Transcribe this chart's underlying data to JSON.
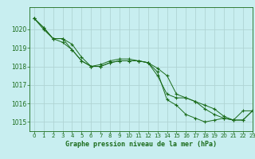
{
  "title": "Graphe pression niveau de la mer (hPa)",
  "background_color": "#c8eef0",
  "grid_color": "#b0d4d4",
  "line_color": "#1a6b1a",
  "x_min": -0.5,
  "x_max": 23,
  "y_min": 1014.5,
  "y_max": 1021.2,
  "yticks": [
    1015,
    1016,
    1017,
    1018,
    1019,
    1020
  ],
  "xticks": [
    0,
    1,
    2,
    3,
    4,
    5,
    6,
    7,
    8,
    9,
    10,
    11,
    12,
    13,
    14,
    15,
    16,
    17,
    18,
    19,
    20,
    21,
    22,
    23
  ],
  "series1": [
    1020.6,
    1020.1,
    1019.5,
    1019.5,
    1018.9,
    1018.3,
    1018.0,
    1018.0,
    1018.2,
    1018.3,
    1018.3,
    1018.3,
    1018.2,
    1017.5,
    1016.5,
    1016.3,
    1016.3,
    1016.1,
    1015.9,
    1015.7,
    1015.3,
    1015.1,
    1015.1,
    1015.6
  ],
  "series2": [
    1020.6,
    1020.1,
    1019.5,
    1019.5,
    1019.2,
    1018.5,
    1018.0,
    1018.1,
    1018.3,
    1018.4,
    1018.4,
    1018.3,
    1018.2,
    1017.9,
    1017.5,
    1016.5,
    1016.3,
    1016.1,
    1015.7,
    1015.4,
    1015.2,
    1015.1,
    1015.6,
    1015.6
  ],
  "series3": [
    1020.6,
    1020.0,
    1019.5,
    1019.3,
    1018.9,
    1018.3,
    1018.0,
    1018.0,
    1018.2,
    1018.3,
    1018.3,
    1018.3,
    1018.2,
    1017.7,
    1016.2,
    1015.9,
    1015.4,
    1015.2,
    1015.0,
    1015.1,
    1015.2,
    1015.1,
    1015.1,
    1015.6
  ],
  "xlabel_fontsize": 6.0,
  "ytick_fontsize": 5.5,
  "xtick_fontsize": 5.0
}
